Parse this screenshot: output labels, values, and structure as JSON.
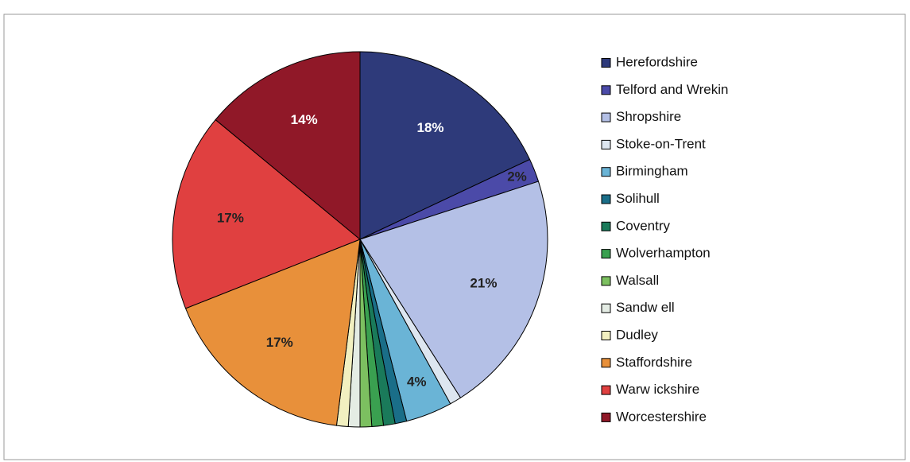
{
  "chart_data": {
    "type": "pie",
    "categories": [
      "Herefordshire",
      "Telford and Wrekin",
      "Shropshire",
      "Stoke-on-Trent",
      "Birmingham",
      "Solihull",
      "Coventry",
      "Wolverhampton",
      "Walsall",
      "Sandw ell",
      "Dudley",
      "Staffordshire",
      "Warw ickshire",
      "Worcestershire"
    ],
    "values": [
      18,
      2,
      21,
      1,
      4,
      1,
      1,
      1,
      1,
      1,
      1,
      17,
      17,
      14
    ],
    "value_labels": [
      "18%",
      "2%",
      "21%",
      null,
      "4%",
      null,
      null,
      null,
      null,
      null,
      null,
      "17%",
      "17%",
      "14%"
    ],
    "colors": [
      "#2e3a7a",
      "#4b4aa8",
      "#b4c0e6",
      "#dde6f0",
      "#6ab4d6",
      "#1a6e88",
      "#1a7a5a",
      "#3aa050",
      "#7cc060",
      "#e4ece4",
      "#f2f0c0",
      "#e8903a",
      "#e04040",
      "#901828"
    ],
    "legend": "right"
  }
}
